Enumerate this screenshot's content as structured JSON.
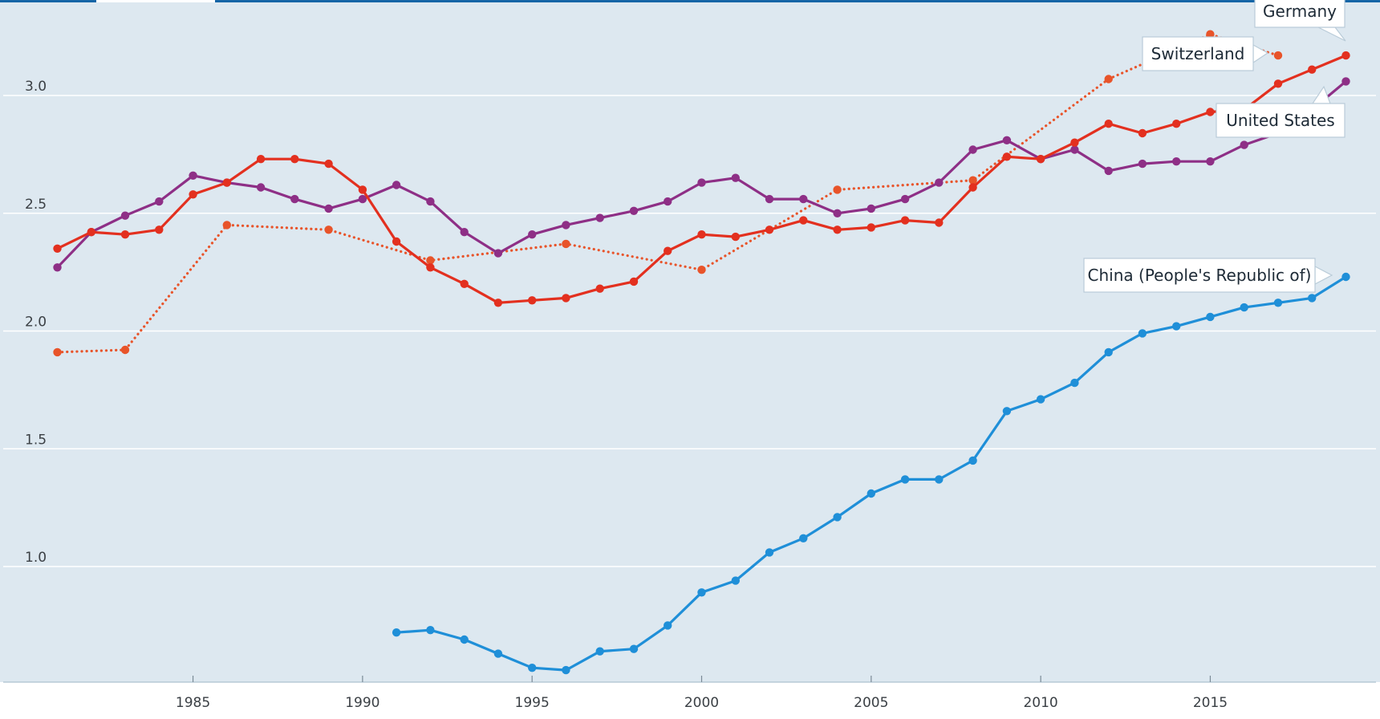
{
  "chart_data": {
    "type": "line",
    "xlim": [
      1980.8,
      2019.5
    ],
    "ylim": [
      0.52,
      3.4
    ],
    "x_ticks": [
      1985,
      1990,
      1995,
      2000,
      2005,
      2010,
      2015
    ],
    "y_ticks": [
      1.0,
      1.5,
      2.0,
      2.5,
      3.0
    ],
    "y_tick_labels": [
      "1.0",
      "1.5",
      "2.0",
      "2.5",
      "3.0"
    ],
    "grid": "horizontal",
    "colors": {
      "background": "#dde8f0",
      "grid": "#ffffff",
      "axis": "#b7c9d6"
    },
    "series": [
      {
        "name": "Germany",
        "color": "#e3301f",
        "style": "solid",
        "points": [
          [
            1981,
            2.35
          ],
          [
            1982,
            2.42
          ],
          [
            1983,
            2.41
          ],
          [
            1984,
            2.43
          ],
          [
            1985,
            2.58
          ],
          [
            1986,
            2.63
          ],
          [
            1987,
            2.73
          ],
          [
            1988,
            2.73
          ],
          [
            1989,
            2.71
          ],
          [
            1990,
            2.6
          ],
          [
            1991,
            2.38
          ],
          [
            1992,
            2.27
          ],
          [
            1993,
            2.2
          ],
          [
            1994,
            2.12
          ],
          [
            1995,
            2.13
          ],
          [
            1996,
            2.14
          ],
          [
            1997,
            2.18
          ],
          [
            1998,
            2.21
          ],
          [
            1999,
            2.34
          ],
          [
            2000,
            2.41
          ],
          [
            2001,
            2.4
          ],
          [
            2002,
            2.43
          ],
          [
            2003,
            2.47
          ],
          [
            2004,
            2.43
          ],
          [
            2005,
            2.44
          ],
          [
            2006,
            2.47
          ],
          [
            2007,
            2.46
          ],
          [
            2008,
            2.61
          ],
          [
            2009,
            2.74
          ],
          [
            2010,
            2.73
          ],
          [
            2011,
            2.8
          ],
          [
            2012,
            2.88
          ],
          [
            2013,
            2.84
          ],
          [
            2014,
            2.88
          ],
          [
            2015,
            2.93
          ],
          [
            2016,
            2.94
          ],
          [
            2017,
            3.05
          ],
          [
            2018,
            3.11
          ],
          [
            2019,
            3.17
          ]
        ]
      },
      {
        "name": "Switzerland",
        "color": "#e8542a",
        "style": "dotted",
        "points": [
          [
            1981,
            1.91
          ],
          [
            1983,
            1.92
          ],
          [
            1986,
            2.45
          ],
          [
            1989,
            2.43
          ],
          [
            1992,
            2.3
          ],
          [
            1996,
            2.37
          ],
          [
            2000,
            2.26
          ],
          [
            2004,
            2.6
          ],
          [
            2008,
            2.64
          ],
          [
            2012,
            3.07
          ],
          [
            2015,
            3.26
          ],
          [
            2017,
            3.17
          ]
        ]
      },
      {
        "name": "United States",
        "color": "#8e2f86",
        "style": "solid",
        "points": [
          [
            1981,
            2.27
          ],
          [
            1982,
            2.42
          ],
          [
            1983,
            2.49
          ],
          [
            1984,
            2.55
          ],
          [
            1985,
            2.66
          ],
          [
            1986,
            2.63
          ],
          [
            1987,
            2.61
          ],
          [
            1988,
            2.56
          ],
          [
            1989,
            2.52
          ],
          [
            1990,
            2.56
          ],
          [
            1991,
            2.62
          ],
          [
            1992,
            2.55
          ],
          [
            1993,
            2.42
          ],
          [
            1994,
            2.33
          ],
          [
            1995,
            2.41
          ],
          [
            1996,
            2.45
          ],
          [
            1997,
            2.48
          ],
          [
            1998,
            2.51
          ],
          [
            1999,
            2.55
          ],
          [
            2000,
            2.63
          ],
          [
            2001,
            2.65
          ],
          [
            2002,
            2.56
          ],
          [
            2003,
            2.56
          ],
          [
            2004,
            2.5
          ],
          [
            2005,
            2.52
          ],
          [
            2006,
            2.56
          ],
          [
            2007,
            2.63
          ],
          [
            2008,
            2.77
          ],
          [
            2009,
            2.81
          ],
          [
            2010,
            2.73
          ],
          [
            2011,
            2.77
          ],
          [
            2012,
            2.68
          ],
          [
            2013,
            2.71
          ],
          [
            2014,
            2.72
          ],
          [
            2015,
            2.72
          ],
          [
            2016,
            2.79
          ],
          [
            2017,
            2.84
          ],
          [
            2018,
            2.94
          ],
          [
            2019,
            3.06
          ]
        ]
      },
      {
        "name": "China (People's Republic of)",
        "color": "#1f8fd8",
        "style": "solid",
        "points": [
          [
            1991,
            0.72
          ],
          [
            1992,
            0.73
          ],
          [
            1993,
            0.69
          ],
          [
            1994,
            0.63
          ],
          [
            1995,
            0.57
          ],
          [
            1996,
            0.56
          ],
          [
            1997,
            0.64
          ],
          [
            1998,
            0.65
          ],
          [
            1999,
            0.75
          ],
          [
            2000,
            0.89
          ],
          [
            2001,
            0.94
          ],
          [
            2002,
            1.06
          ],
          [
            2003,
            1.12
          ],
          [
            2004,
            1.21
          ],
          [
            2005,
            1.31
          ],
          [
            2006,
            1.37
          ],
          [
            2007,
            1.37
          ],
          [
            2008,
            1.45
          ],
          [
            2009,
            1.66
          ],
          [
            2010,
            1.71
          ],
          [
            2011,
            1.78
          ],
          [
            2012,
            1.91
          ],
          [
            2013,
            1.99
          ],
          [
            2014,
            2.02
          ],
          [
            2015,
            2.06
          ],
          [
            2016,
            2.1
          ],
          [
            2017,
            2.12
          ],
          [
            2018,
            2.14
          ],
          [
            2019,
            2.23
          ]
        ]
      }
    ]
  },
  "callouts": [
    {
      "id": "germany",
      "text": "Germany"
    },
    {
      "id": "switzerland",
      "text": "Switzerland"
    },
    {
      "id": "united-states",
      "text": "United States"
    },
    {
      "id": "china",
      "text": "China (People's Republic of)"
    }
  ]
}
